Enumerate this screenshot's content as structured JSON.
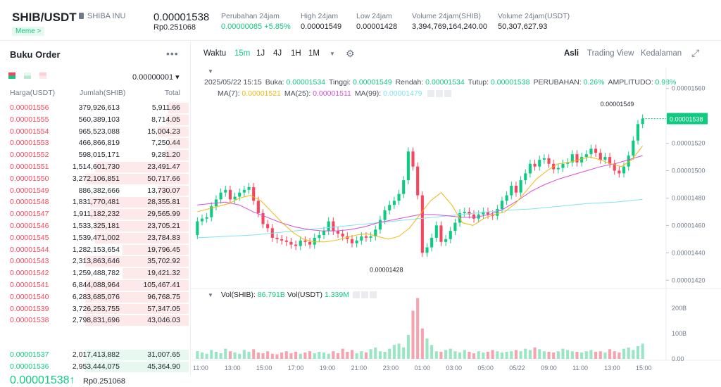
{
  "header": {
    "pair": "SHIB/USDT",
    "coin_name": "SHIBA INU",
    "tag": "Meme >",
    "last_price": "0.00001538",
    "last_price_rp": "Rp0.251068",
    "stats": [
      {
        "label": "Perubahan 24jam",
        "value": "0.00000085 +5.85%"
      },
      {
        "label": "High 24jam",
        "value": "0.00001549"
      },
      {
        "label": "Low 24jam",
        "value": "0.00001428"
      },
      {
        "label": "Volume 24jam(SHIB)",
        "value": "3,394,769,164,240.00"
      },
      {
        "label": "Volume 24jam(USDT)",
        "value": "50,307,627.93"
      }
    ]
  },
  "orderbook": {
    "title": "Buku Order",
    "menu": "•••",
    "precision": "0.00000001 ▾",
    "col_price": "Harga(USDT)",
    "col_amount": "Jumlah(SHIB)",
    "col_total": "Total",
    "asks": [
      {
        "p": "0.00001556",
        "a": "379,926,613",
        "t": "5,911.66",
        "d": 0.2
      },
      {
        "p": "0.00001555",
        "a": "560,389,103",
        "t": "8,714.05",
        "d": 0.22
      },
      {
        "p": "0.00001554",
        "a": "965,523,088",
        "t": "15,004.23",
        "d": 0.3
      },
      {
        "p": "0.00001553",
        "a": "466,866,819",
        "t": "7,250.44",
        "d": 0.2
      },
      {
        "p": "0.00001552",
        "a": "598,015,171",
        "t": "9,281.20",
        "d": 0.23
      },
      {
        "p": "0.00001551",
        "a": "1,514,601,730",
        "t": "23,491.47",
        "d": 0.9
      },
      {
        "p": "0.00001550",
        "a": "3,272,106,851",
        "t": "50,717.66",
        "d": 1
      },
      {
        "p": "0.00001549",
        "a": "886,382,666",
        "t": "13,730.07",
        "d": 0.3
      },
      {
        "p": "0.00001548",
        "a": "1,831,770,481",
        "t": "28,355.81",
        "d": 0.95
      },
      {
        "p": "0.00001547",
        "a": "1,911,182,232",
        "t": "29,565.99",
        "d": 0.95
      },
      {
        "p": "0.00001546",
        "a": "1,533,325,181",
        "t": "23,705.21",
        "d": 0.9
      },
      {
        "p": "0.00001545",
        "a": "1,539,471,002",
        "t": "23,784.83",
        "d": 0.9
      },
      {
        "p": "0.00001544",
        "a": "1,282,153,654",
        "t": "19,796.45",
        "d": 0.64
      },
      {
        "p": "0.00001543",
        "a": "2,313,863,646",
        "t": "35,702.92",
        "d": 1
      },
      {
        "p": "0.00001542",
        "a": "1,259,488,782",
        "t": "19,421.32",
        "d": 0.64
      },
      {
        "p": "0.00001541",
        "a": "6,844,088,964",
        "t": "105,467.41",
        "d": 1
      },
      {
        "p": "0.00001540",
        "a": "6,283,685,076",
        "t": "96,768.75",
        "d": 1
      },
      {
        "p": "0.00001539",
        "a": "3,726,253,755",
        "t": "57,347.05",
        "d": 1
      },
      {
        "p": "0.00001538",
        "a": "2,798,831,696",
        "t": "43,046.03",
        "d": 1
      }
    ],
    "mid_price": "0.00001538↑",
    "mid_rp": "Rp0.251068",
    "bids": [
      {
        "p": "0.00001537",
        "a": "2,017,413,882",
        "t": "31,007.65",
        "d": 1
      },
      {
        "p": "0.00001536",
        "a": "2,953,444,075",
        "t": "45,364.90",
        "d": 1
      }
    ]
  },
  "chart": {
    "toolbar": [
      "Waktu",
      "15m",
      "1J",
      "4J",
      "1H",
      "1M"
    ],
    "views": [
      "Asli",
      "Trading View",
      "Kedalaman"
    ],
    "info_line": [
      {
        "k": "2025/05/22 15:15",
        "v": ""
      },
      {
        "k": "Buka:",
        "v": "0.00001534"
      },
      {
        "k": "Tinggi:",
        "v": "0.00001549"
      },
      {
        "k": "Rendah:",
        "v": "0.00001534"
      },
      {
        "k": "Tutup:",
        "v": "0.00001538"
      },
      {
        "k": "PERUBAHAN:",
        "v": "0.26%"
      },
      {
        "k": "AMPLITUDO:",
        "v": "0.98%"
      }
    ],
    "ma": [
      {
        "k": "MA(7):",
        "v": "0.00001521",
        "color": "#f0b90b"
      },
      {
        "k": "MA(25):",
        "v": "0.00001511",
        "color": "#d64ed6"
      },
      {
        "k": "MA(99):",
        "v": "0.00001479",
        "color": "#7fe3f0"
      }
    ],
    "price_axis": [
      "0.00001560",
      "0.00001540",
      "0.00001520",
      "0.00001500",
      "0.00001480",
      "0.00001460",
      "0.00001440",
      "0.00001420"
    ],
    "current_label": "0.00001538",
    "high_label": "0.00001549",
    "low_label": "0.00001428",
    "vol_head": {
      "a": "Vol(SHIB):",
      "av": "86.791B",
      "b": "Vol(USDT)",
      "bv": "1.339M"
    },
    "vol_axis": [
      "200B",
      "100B",
      "0.00"
    ],
    "time_axis": [
      "11:00",
      "13:00",
      "15:00",
      "17:00",
      "19:00",
      "21:00",
      "23:00",
      "01:00",
      "03:00",
      "05:00",
      "05/22",
      "09:00",
      "11:00",
      "13:00",
      "15:00"
    ]
  },
  "chart_data": {
    "type": "candlestick",
    "ylim": [
      1.415e-05,
      1.565e-05
    ],
    "closes": [
      1.463e-05,
      1.465e-05,
      1.466e-05,
      1.474e-05,
      1.479e-05,
      1.484e-05,
      1.486e-05,
      1.479e-05,
      1.481e-05,
      1.484e-05,
      1.486e-05,
      1.488e-05,
      1.478e-05,
      1.469e-05,
      1.461e-05,
      1.458e-05,
      1.451e-05,
      1.45e-05,
      1.449e-05,
      1.448e-05,
      1.446e-05,
      1.445e-05,
      1.449e-05,
      1.448e-05,
      1.446e-05,
      1.451e-05,
      1.453e-05,
      1.456e-05,
      1.463e-05,
      1.456e-05,
      1.454e-05,
      1.452e-05,
      1.45e-05,
      1.447e-05,
      1.449e-05,
      1.452e-05,
      1.451e-05,
      1.452e-05,
      1.457e-05,
      1.464e-05,
      1.471e-05,
      1.475e-05,
      1.478e-05,
      1.483e-05,
      1.493e-05,
      1.514e-05,
      1.503e-05,
      1.482e-05,
      1.44e-05,
      1.444e-05,
      1.451e-05,
      1.46e-05,
      1.448e-05,
      1.45e-05,
      1.456e-05,
      1.462e-05,
      1.469e-05,
      1.47e-05,
      1.468e-05,
      1.465e-05,
      1.468e-05,
      1.47e-05,
      1.468e-05,
      1.467e-05,
      1.472e-05,
      1.478e-05,
      1.482e-05,
      1.489e-05,
      1.484e-05,
      1.493e-05,
      1.498e-05,
      1.505e-05,
      1.503e-05,
      1.508e-05,
      1.509e-05,
      1.505e-05,
      1.501e-05,
      1.502e-05,
      1.505e-05,
      1.506e-05,
      1.512e-05,
      1.506e-05,
      1.51e-05,
      1.512e-05,
      1.516e-05,
      1.513e-05,
      1.508e-05,
      1.51e-05,
      1.505e-05,
      1.5e-05,
      1.498e-05,
      1.503e-05,
      1.511e-05,
      1.522e-05,
      1.534e-05,
      1.538e-05
    ],
    "ma7": [
      1.47e-05,
      1.472e-05,
      1.474e-05,
      1.476e-05,
      1.48e-05,
      1.482e-05,
      1.478e-05,
      1.47e-05,
      1.462e-05,
      1.455e-05,
      1.45e-05,
      1.448e-05,
      1.448e-05,
      1.449e-05,
      1.451e-05,
      1.453e-05,
      1.454e-05,
      1.452e-05,
      1.45e-05,
      1.452e-05,
      1.458e-05,
      1.468e-05,
      1.478e-05,
      1.484e-05,
      1.475e-05,
      1.462e-05,
      1.46e-05,
      1.465e-05,
      1.468e-05,
      1.47e-05,
      1.476e-05,
      1.485e-05,
      1.494e-05,
      1.5e-05,
      1.505e-05,
      1.506e-05,
      1.508e-05,
      1.51e-05,
      1.508e-05,
      1.505e-05,
      1.503e-05,
      1.508e-05,
      1.518e-05
    ],
    "ma25": [
      1.475e-05,
      1.476e-05,
      1.477e-05,
      1.475e-05,
      1.47e-05,
      1.466e-05,
      1.462e-05,
      1.459e-05,
      1.457e-05,
      1.456e-05,
      1.456e-05,
      1.457e-05,
      1.459e-05,
      1.462e-05,
      1.464e-05,
      1.466e-05,
      1.468e-05,
      1.468e-05,
      1.467e-05,
      1.466e-05,
      1.466e-05,
      1.468e-05,
      1.472e-05,
      1.478e-05,
      1.485e-05,
      1.49e-05,
      1.494e-05,
      1.497e-05,
      1.5e-05,
      1.503e-05,
      1.505e-05,
      1.508e-05,
      1.511e-05
    ],
    "ma99": [
      1.451e-05,
      1.452e-05,
      1.453e-05,
      1.455e-05,
      1.457e-05,
      1.459e-05,
      1.461e-05,
      1.463e-05,
      1.465e-05,
      1.467e-05,
      1.469e-05,
      1.471e-05,
      1.472e-05,
      1.474e-05,
      1.476e-05,
      1.477e-05,
      1.479e-05
    ],
    "volumes": [
      30,
      25,
      20,
      35,
      28,
      22,
      40,
      30,
      25,
      20,
      35,
      28,
      38,
      25,
      22,
      30,
      20,
      18,
      25,
      30,
      22,
      28,
      20,
      25,
      30,
      22,
      28,
      25,
      20,
      30,
      22,
      40,
      28,
      35,
      22,
      30,
      25,
      38,
      45,
      30,
      28,
      40,
      55,
      60,
      45,
      95,
      190,
      240,
      120,
      80,
      55,
      30,
      28,
      35,
      40,
      30,
      25,
      35,
      28,
      22,
      30,
      25,
      28,
      35,
      30,
      25,
      28,
      30,
      35,
      30,
      40,
      35,
      45,
      38,
      30,
      28,
      25,
      30,
      40,
      35,
      30,
      28,
      25,
      30,
      35,
      28,
      30,
      25,
      38,
      30,
      25,
      40,
      45,
      35,
      50,
      60
    ]
  }
}
